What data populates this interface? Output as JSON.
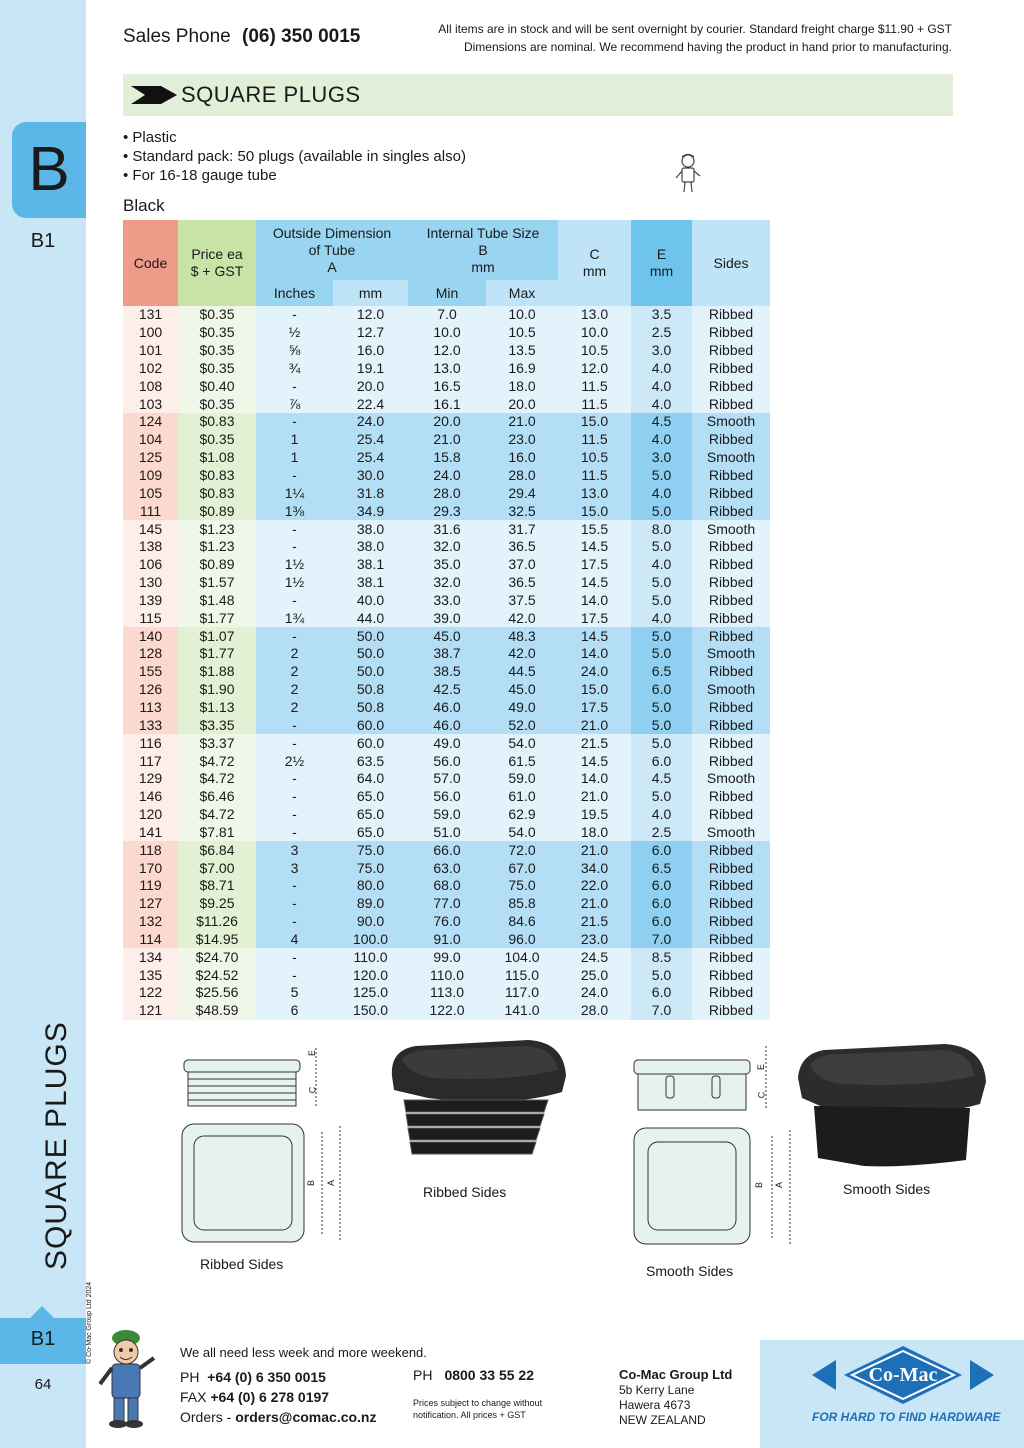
{
  "header": {
    "sales_phone_label": "Sales Phone",
    "sales_phone_number": "(06) 350 0015",
    "note_line1": "All items are in stock and will be sent overnight by courier. Standard freight charge $11.90 + GST",
    "note_line2": "Dimensions are nominal. We recommend having the product in hand prior to manufacturing."
  },
  "sidebar": {
    "tab_letter": "B",
    "code_top": "B1",
    "section_title": "SQUARE PLUGS",
    "code_bottom": "B1",
    "page_number": "64",
    "copyright": "© Co-Mac Group Ltd 2024"
  },
  "banner": {
    "title": "SQUARE PLUGS"
  },
  "bullets": [
    "• Plastic",
    "• Standard pack: 50 plugs (available in singles also)",
    "• For 16-18 gauge tube"
  ],
  "color_label": "Black",
  "table": {
    "headers": {
      "code": "Code",
      "price": "Price ea\n$ + GST",
      "outside": "Outside Dimension\nof Tube\nA",
      "internal": "Internal Tube Size\nB\nmm",
      "c": "C\nmm",
      "e": "E\nmm",
      "sides": "Sides",
      "inches": "Inches",
      "mm": "mm",
      "min": "Min",
      "max": "Max"
    },
    "rows": [
      [
        "131",
        "$0.35",
        "-",
        "12.0",
        "7.0",
        "10.0",
        "13.0",
        "3.5",
        "Ribbed"
      ],
      [
        "100",
        "$0.35",
        "½",
        "12.7",
        "10.0",
        "10.5",
        "10.0",
        "2.5",
        "Ribbed"
      ],
      [
        "101",
        "$0.35",
        "⅝",
        "16.0",
        "12.0",
        "13.5",
        "10.5",
        "3.0",
        "Ribbed"
      ],
      [
        "102",
        "$0.35",
        "¾",
        "19.1",
        "13.0",
        "16.9",
        "12.0",
        "4.0",
        "Ribbed"
      ],
      [
        "108",
        "$0.40",
        "-",
        "20.0",
        "16.5",
        "18.0",
        "11.5",
        "4.0",
        "Ribbed"
      ],
      [
        "103",
        "$0.35",
        "⅞",
        "22.4",
        "16.1",
        "20.0",
        "11.5",
        "4.0",
        "Ribbed"
      ],
      [
        "124",
        "$0.83",
        "-",
        "24.0",
        "20.0",
        "21.0",
        "15.0",
        "4.5",
        "Smooth"
      ],
      [
        "104",
        "$0.35",
        "1",
        "25.4",
        "21.0",
        "23.0",
        "11.5",
        "4.0",
        "Ribbed"
      ],
      [
        "125",
        "$1.08",
        "1",
        "25.4",
        "15.8",
        "16.0",
        "10.5",
        "3.0",
        "Smooth"
      ],
      [
        "109",
        "$0.83",
        "-",
        "30.0",
        "24.0",
        "28.0",
        "11.5",
        "5.0",
        "Ribbed"
      ],
      [
        "105",
        "$0.83",
        "1¼",
        "31.8",
        "28.0",
        "29.4",
        "13.0",
        "4.0",
        "Ribbed"
      ],
      [
        "111",
        "$0.89",
        "1⅜",
        "34.9",
        "29.3",
        "32.5",
        "15.0",
        "5.0",
        "Ribbed"
      ],
      [
        "145",
        "$1.23",
        "-",
        "38.0",
        "31.6",
        "31.7",
        "15.5",
        "8.0",
        "Smooth"
      ],
      [
        "138",
        "$1.23",
        "-",
        "38.0",
        "32.0",
        "36.5",
        "14.5",
        "5.0",
        "Ribbed"
      ],
      [
        "106",
        "$0.89",
        "1½",
        "38.1",
        "35.0",
        "37.0",
        "17.5",
        "4.0",
        "Ribbed"
      ],
      [
        "130",
        "$1.57",
        "1½",
        "38.1",
        "32.0",
        "36.5",
        "14.5",
        "5.0",
        "Ribbed"
      ],
      [
        "139",
        "$1.48",
        "-",
        "40.0",
        "33.0",
        "37.5",
        "14.0",
        "5.0",
        "Ribbed"
      ],
      [
        "115",
        "$1.77",
        "1¾",
        "44.0",
        "39.0",
        "42.0",
        "17.5",
        "4.0",
        "Ribbed"
      ],
      [
        "140",
        "$1.07",
        "-",
        "50.0",
        "45.0",
        "48.3",
        "14.5",
        "5.0",
        "Ribbed"
      ],
      [
        "128",
        "$1.77",
        "2",
        "50.0",
        "38.7",
        "42.0",
        "14.0",
        "5.0",
        "Smooth"
      ],
      [
        "155",
        "$1.88",
        "2",
        "50.0",
        "38.5",
        "44.5",
        "24.0",
        "6.5",
        "Ribbed"
      ],
      [
        "126",
        "$1.90",
        "2",
        "50.8",
        "42.5",
        "45.0",
        "15.0",
        "6.0",
        "Smooth"
      ],
      [
        "113",
        "$1.13",
        "2",
        "50.8",
        "46.0",
        "49.0",
        "17.5",
        "5.0",
        "Ribbed"
      ],
      [
        "133",
        "$3.35",
        "-",
        "60.0",
        "46.0",
        "52.0",
        "21.0",
        "5.0",
        "Ribbed"
      ],
      [
        "116",
        "$3.37",
        "-",
        "60.0",
        "49.0",
        "54.0",
        "21.5",
        "5.0",
        "Ribbed"
      ],
      [
        "117",
        "$4.72",
        "2½",
        "63.5",
        "56.0",
        "61.5",
        "14.5",
        "6.0",
        "Ribbed"
      ],
      [
        "129",
        "$4.72",
        "-",
        "64.0",
        "57.0",
        "59.0",
        "14.0",
        "4.5",
        "Smooth"
      ],
      [
        "146",
        "$6.46",
        "-",
        "65.0",
        "56.0",
        "61.0",
        "21.0",
        "5.0",
        "Ribbed"
      ],
      [
        "120",
        "$4.72",
        "-",
        "65.0",
        "59.0",
        "62.9",
        "19.5",
        "4.0",
        "Ribbed"
      ],
      [
        "141",
        "$7.81",
        "-",
        "65.0",
        "51.0",
        "54.0",
        "18.0",
        "2.5",
        "Smooth"
      ],
      [
        "118",
        "$6.84",
        "3",
        "75.0",
        "66.0",
        "72.0",
        "21.0",
        "6.0",
        "Ribbed"
      ],
      [
        "170",
        "$7.00",
        "3",
        "75.0",
        "63.0",
        "67.0",
        "34.0",
        "6.5",
        "Ribbed"
      ],
      [
        "119",
        "$8.71",
        "-",
        "80.0",
        "68.0",
        "75.0",
        "22.0",
        "6.0",
        "Ribbed"
      ],
      [
        "127",
        "$9.25",
        "-",
        "89.0",
        "77.0",
        "85.8",
        "21.0",
        "6.0",
        "Ribbed"
      ],
      [
        "132",
        "$11.26",
        "-",
        "90.0",
        "76.0",
        "84.6",
        "21.5",
        "6.0",
        "Ribbed"
      ],
      [
        "114",
        "$14.95",
        "4",
        "100.0",
        "91.0",
        "96.0",
        "23.0",
        "7.0",
        "Ribbed"
      ],
      [
        "134",
        "$24.70",
        "-",
        "110.0",
        "99.0",
        "104.0",
        "24.5",
        "8.5",
        "Ribbed"
      ],
      [
        "135",
        "$24.52",
        "-",
        "120.0",
        "110.0",
        "115.0",
        "25.0",
        "5.0",
        "Ribbed"
      ],
      [
        "122",
        "$25.56",
        "5",
        "125.0",
        "113.0",
        "117.0",
        "24.0",
        "6.0",
        "Ribbed"
      ],
      [
        "121",
        "$48.59",
        "6",
        "150.0",
        "122.0",
        "141.0",
        "28.0",
        "7.0",
        "Ribbed"
      ]
    ]
  },
  "diagrams": {
    "ribbed_drawing_caption": "Ribbed Sides",
    "ribbed_photo_caption": "Ribbed Sides",
    "smooth_drawing_caption": "Smooth Sides",
    "smooth_photo_caption": "Smooth Sides",
    "dim_labels": {
      "e": "E",
      "c": "C",
      "b": "B",
      "a": "A"
    }
  },
  "footer": {
    "tagline": "We all need less week and more weekend.",
    "ph_label": "PH",
    "ph_number": "+64 (0) 6 350 0015",
    "fax_label": "FAX",
    "fax_number": "+64 (0) 6 278 0197",
    "orders_label": "Orders -",
    "orders_email": "orders@comac.co.nz",
    "ph2_label": "PH",
    "ph2_number": "0800 33 55 22",
    "prices_line1": "Prices subject to change without",
    "prices_line2": "notification. All prices + GST",
    "company": "Co-Mac Group Ltd",
    "address1": "5b Kerry Lane",
    "address2": "Hawera 4673",
    "address3": "NEW ZEALAND",
    "logo_text": "Co-Mac",
    "logo_slogan": "FOR HARD TO FIND HARDWARE",
    "logo_color": "#1d6fb8"
  }
}
